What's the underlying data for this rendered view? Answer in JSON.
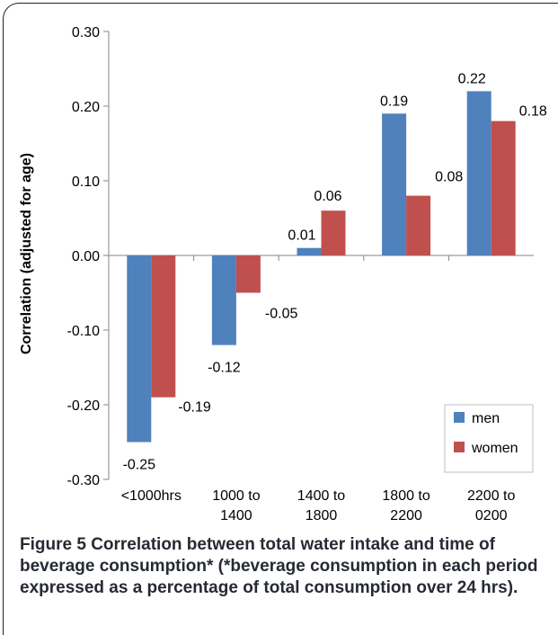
{
  "chart_data": {
    "type": "bar",
    "categories": [
      [
        "<1000hrs"
      ],
      [
        "1000 to",
        "1400"
      ],
      [
        "1400 to",
        "1800"
      ],
      [
        "1800 to",
        "2200"
      ],
      [
        "2200 to",
        "0200"
      ]
    ],
    "series": [
      {
        "name": "men",
        "color": "#4f81bd",
        "values": [
          -0.25,
          -0.12,
          0.01,
          0.19,
          0.22
        ],
        "labels": [
          "-0.25",
          "-0.12",
          "0.01",
          "0.19",
          "0.22"
        ]
      },
      {
        "name": "women",
        "color": "#c0504d",
        "values": [
          -0.19,
          -0.05,
          0.06,
          0.08,
          0.18
        ],
        "labels": [
          "-0.19",
          "-0.05",
          "0.06",
          "0.08",
          "0.18"
        ]
      }
    ],
    "ylabel": "Correlation (adjusted for age)",
    "ylim": [
      -0.3,
      0.3
    ],
    "yticks": [
      "0.30",
      "0.20",
      "0.10",
      "0.00",
      "-0.10",
      "-0.20",
      "-0.30"
    ],
    "legend_position": "bottom-right",
    "grid": false
  },
  "caption": {
    "label": "Figure 5",
    "text": "Correlation between total water intake and time of beverage consumption* (*beverage consumption in each period expressed as a percentage of total consumption over 24 hrs)."
  }
}
